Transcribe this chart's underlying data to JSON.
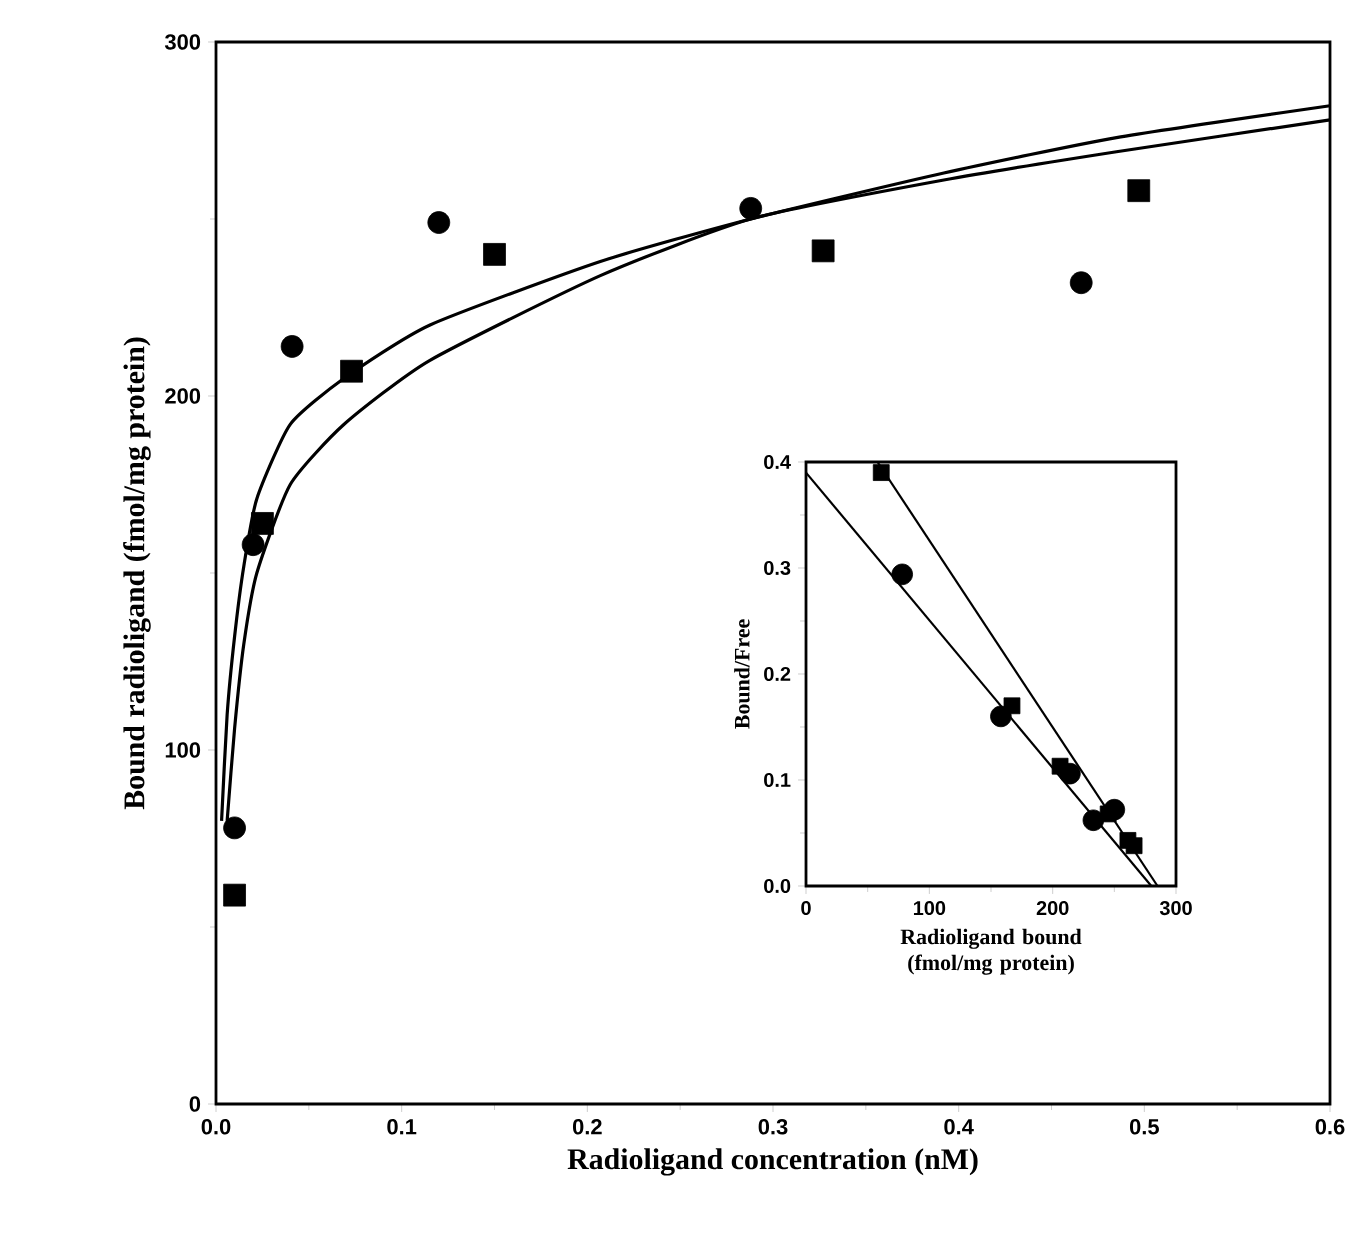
{
  "chart_data": [
    {
      "type": "scatter",
      "xlabel": "Radioligand concentration (nM)",
      "ylabel": "Bound radioligand (fmol/mg protein)",
      "xlim": [
        0,
        0.6
      ],
      "ylim": [
        0,
        300
      ],
      "xticks": [
        {
          "value": 0,
          "label": "0.0"
        },
        {
          "value": 0.1,
          "label": "0.1"
        },
        {
          "value": 0.2,
          "label": "0.2"
        },
        {
          "value": 0.3,
          "label": "0.3"
        },
        {
          "value": 0.4,
          "label": "0.4"
        },
        {
          "value": 0.5,
          "label": "0.5"
        },
        {
          "value": 0.6,
          "label": "0.6"
        }
      ],
      "yticks": [
        0,
        100,
        200,
        300
      ],
      "series": [
        {
          "marker": "circle",
          "color": "#000000",
          "x": [
            0.01,
            0.02,
            0.041,
            0.12,
            0.288,
            0.466
          ],
          "values": [
            78,
            158,
            214,
            249,
            253,
            232
          ]
        },
        {
          "marker": "square",
          "color": "#000000",
          "x": [
            0.01,
            0.025,
            0.073,
            0.15,
            0.327,
            0.497
          ],
          "values": [
            59,
            164,
            207,
            240,
            241,
            258
          ]
        },
        {
          "type": "line",
          "marker": "none",
          "color": "#000000",
          "x": [
            0.003,
            0.006,
            0.01,
            0.015,
            0.022,
            0.04,
            0.069,
            0.115,
            0.207,
            0.288,
            0.392,
            0.485,
            0.6
          ],
          "values": [
            80,
            110,
            132,
            152,
            171,
            192,
            205,
            220,
            238,
            250,
            263,
            273,
            282
          ]
        },
        {
          "type": "line",
          "marker": "none",
          "color": "#000000",
          "x": [
            0.006,
            0.01,
            0.015,
            0.022,
            0.04,
            0.069,
            0.115,
            0.207,
            0.288,
            0.392,
            0.485,
            0.6
          ],
          "values": [
            80,
            106,
            130,
            150,
            175,
            192,
            210,
            234,
            250,
            261,
            269,
            278
          ]
        }
      ]
    },
    {
      "type": "scatter",
      "xlabel": "Radioligand bound (fmol/mg protein)",
      "ylabel": "Bound/Free",
      "xlim": [
        0,
        300
      ],
      "ylim": [
        0,
        0.4
      ],
      "xticks": [
        0,
        100,
        200,
        300
      ],
      "yticks": [
        {
          "value": 0,
          "label": "0.0"
        },
        {
          "value": 0.1,
          "label": "0.1"
        },
        {
          "value": 0.2,
          "label": "0.2"
        },
        {
          "value": 0.3,
          "label": "0.3"
        },
        {
          "value": 0.4,
          "label": "0.4"
        }
      ],
      "series": [
        {
          "marker": "circle",
          "color": "#000000",
          "x": [
            78,
            158,
            214,
            233,
            250
          ],
          "values": [
            0.294,
            0.16,
            0.106,
            0.062,
            0.072
          ]
        },
        {
          "marker": "square",
          "color": "#000000",
          "x": [
            61,
            167,
            206,
            245,
            261,
            266
          ],
          "values": [
            0.39,
            0.17,
            0.113,
            0.068,
            0.043,
            0.038
          ]
        },
        {
          "type": "line",
          "marker": "none",
          "color": "#000000",
          "x": [
            0,
            280
          ],
          "values": [
            0.39,
            0
          ]
        },
        {
          "type": "line",
          "marker": "none",
          "color": "#000000",
          "x": [
            58,
            285
          ],
          "values": [
            0.4,
            0
          ]
        }
      ]
    }
  ]
}
